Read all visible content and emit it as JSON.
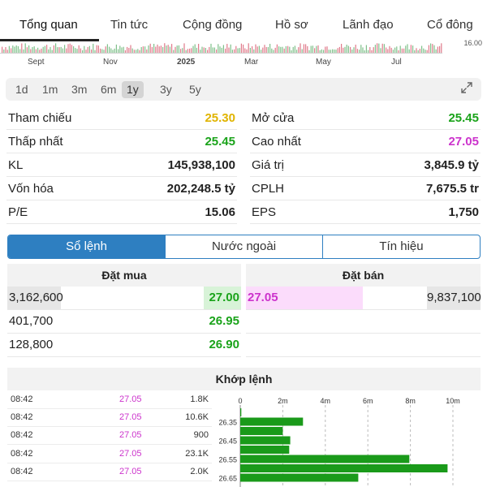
{
  "tabs": [
    "Tổng quan",
    "Tin tức",
    "Cộng đồng",
    "Hồ sơ",
    "Lãnh đạo",
    "Cổ đông"
  ],
  "chart_strip": {
    "x_ticks": [
      "Sept",
      "Nov",
      "2025",
      "Mar",
      "May",
      "Jul"
    ],
    "price_tag": "16.00"
  },
  "ranges": [
    "1d",
    "1m",
    "3m",
    "6m",
    "1y",
    "3y",
    "5y"
  ],
  "active_range": "1y",
  "stats_left": [
    {
      "label": "Tham chiếu",
      "value": "25.30",
      "color": "#e0b400"
    },
    {
      "label": "Thấp nhất",
      "value": "25.45",
      "color": "#1aa31a"
    },
    {
      "label": "KL",
      "value": "145,938,100",
      "color": "#222222"
    },
    {
      "label": "Vốn hóa",
      "value": "202,248.5 tỷ",
      "color": "#222222"
    },
    {
      "label": "P/E",
      "value": "15.06",
      "color": "#222222"
    }
  ],
  "stats_right": [
    {
      "label": "Mở cửa",
      "value": "25.45",
      "color": "#1aa31a"
    },
    {
      "label": "Cao nhất",
      "value": "27.05",
      "color": "#cc33cc"
    },
    {
      "label": "Giá trị",
      "value": "3,845.9 tỷ",
      "color": "#222222"
    },
    {
      "label": "CPLH",
      "value": "7,675.5 tr",
      "color": "#222222"
    },
    {
      "label": "EPS",
      "value": "1,750",
      "color": "#222222"
    }
  ],
  "segments": [
    "Sổ lệnh",
    "Nước ngoài",
    "Tín hiệu"
  ],
  "order_book": {
    "buy_title": "Đặt mua",
    "sell_title": "Đặt bán",
    "buy": [
      {
        "volume": "3,162,600",
        "price": "27.00"
      },
      {
        "volume": "401,700",
        "price": "26.95"
      },
      {
        "volume": "128,800",
        "price": "26.90"
      }
    ],
    "sell": [
      {
        "price": "27.05",
        "volume": "9,837,100"
      }
    ]
  },
  "matched": {
    "title": "Khớp lệnh",
    "trades": [
      {
        "time": "08:42",
        "price": "27.05",
        "volume": "1.8K"
      },
      {
        "time": "08:42",
        "price": "27.05",
        "volume": "10.6K"
      },
      {
        "time": "08:42",
        "price": "27.05",
        "volume": "900"
      },
      {
        "time": "08:42",
        "price": "27.05",
        "volume": "23.1K"
      },
      {
        "time": "08:42",
        "price": "27.05",
        "volume": "2.0K"
      }
    ]
  },
  "chart_data": {
    "type": "bar",
    "orientation": "horizontal",
    "x_ticks": [
      "0",
      "2m",
      "4m",
      "6m",
      "8m",
      "10m"
    ],
    "xlim": [
      0,
      10000000
    ],
    "y_ticks": [
      "26.35",
      "26.45",
      "26.55",
      "26.65"
    ],
    "categories": [
      "26.30",
      "26.35",
      "26.40",
      "26.45",
      "26.50",
      "26.55",
      "26.60",
      "26.65"
    ],
    "values": [
      50000,
      2950000,
      2000000,
      2350000,
      2300000,
      7950000,
      9750000,
      5550000
    ],
    "bar_color": "#1a9a1a"
  }
}
